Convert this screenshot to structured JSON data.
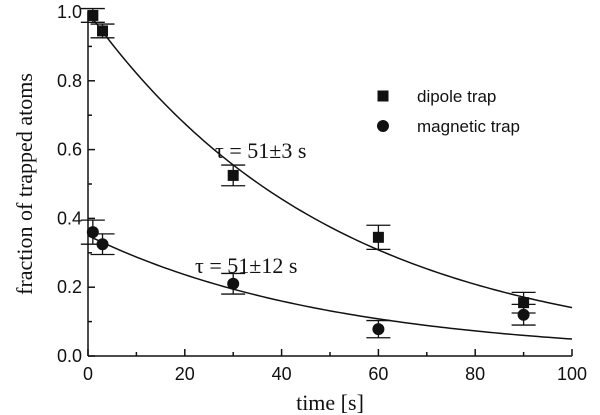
{
  "chart_data": {
    "type": "scatter",
    "title": "",
    "xlabel": "time [s]",
    "ylabel": "fraction of trapped  atoms",
    "xlim": [
      0,
      100
    ],
    "ylim": [
      0,
      1.0
    ],
    "xticks": [
      0,
      20,
      40,
      60,
      80,
      100
    ],
    "xtick_labels": [
      "0",
      "20",
      "40",
      "60",
      "80",
      "100"
    ],
    "yticks": [
      0,
      0.2,
      0.4,
      0.6,
      0.8,
      1.0
    ],
    "ytick_labels": [
      "0.0",
      "0.2",
      "0.4",
      "0.6",
      "0.8",
      "1.0"
    ],
    "grid": false,
    "legend_position": "top-right",
    "series": [
      {
        "name": "dipole trap",
        "marker": "square",
        "color": "#111111",
        "points": [
          {
            "x": 1,
            "y": 0.99,
            "err": 0.02
          },
          {
            "x": 3,
            "y": 0.945,
            "err": 0.02
          },
          {
            "x": 30,
            "y": 0.525,
            "err": 0.03
          },
          {
            "x": 60,
            "y": 0.345,
            "err": 0.035
          },
          {
            "x": 90,
            "y": 0.155,
            "err": 0.03
          }
        ],
        "fit": {
          "amplitude": 1.0,
          "tau": 51,
          "label": "τ = 51±3 s"
        }
      },
      {
        "name": "magnetic trap",
        "marker": "circle",
        "color": "#111111",
        "points": [
          {
            "x": 1,
            "y": 0.36,
            "err": 0.035
          },
          {
            "x": 3,
            "y": 0.325,
            "err": 0.03
          },
          {
            "x": 30,
            "y": 0.21,
            "err": 0.03
          },
          {
            "x": 60,
            "y": 0.078,
            "err": 0.025
          },
          {
            "x": 90,
            "y": 0.12,
            "err": 0.03
          }
        ],
        "fit": {
          "amplitude": 0.35,
          "tau": 51,
          "label": "τ = 51±12 s"
        }
      }
    ]
  }
}
